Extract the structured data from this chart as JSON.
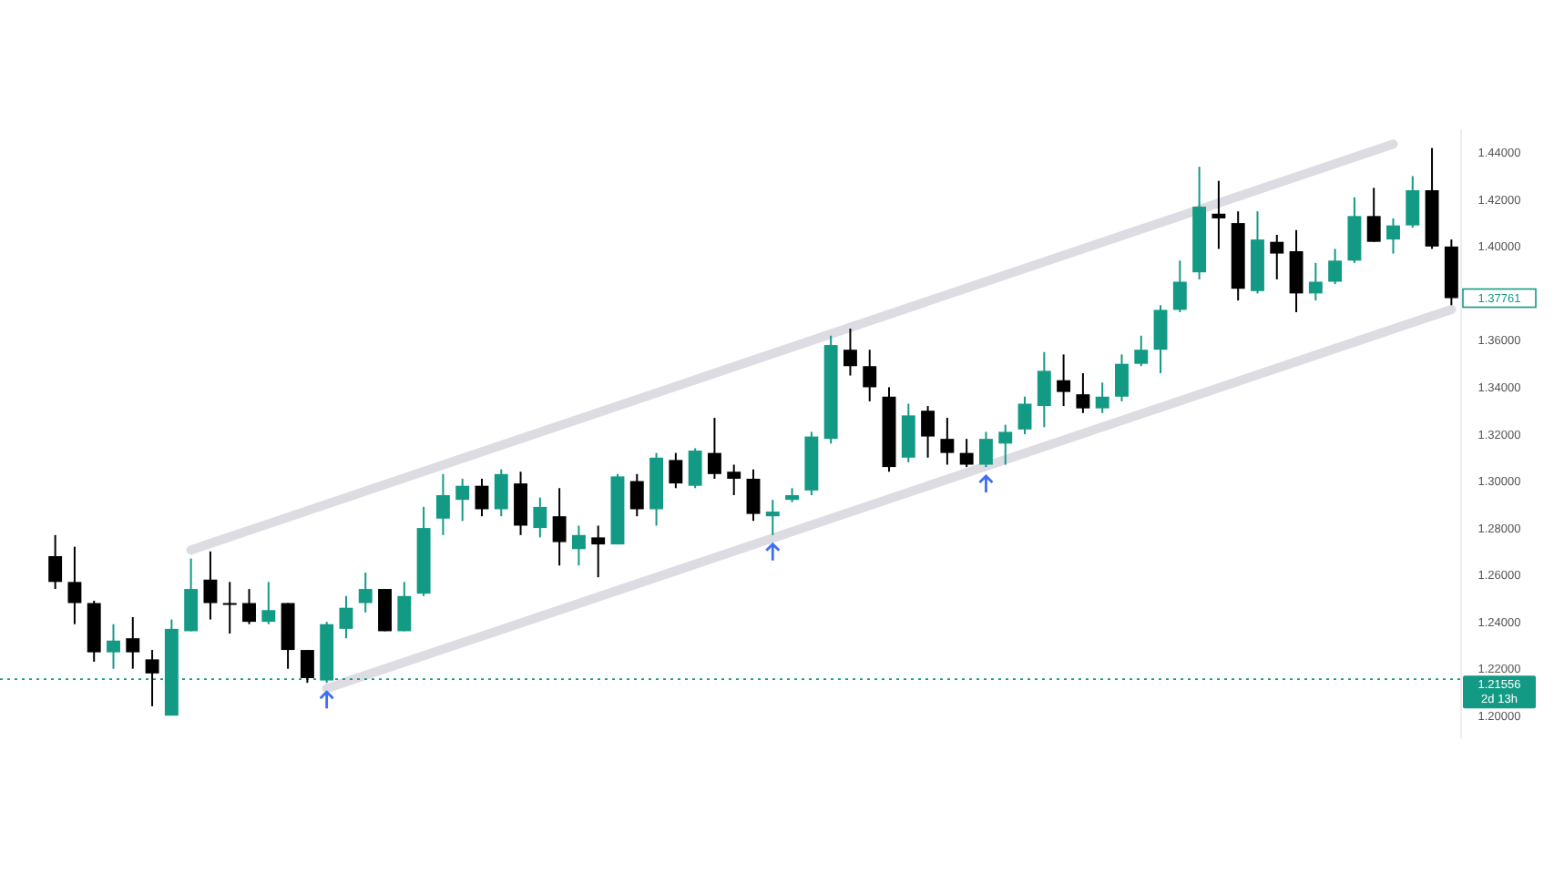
{
  "chart_data": {
    "type": "candlestick",
    "categories": [
      null,
      null,
      null,
      null,
      null,
      null,
      null,
      null,
      null,
      null,
      null,
      null,
      null,
      null,
      null,
      null,
      null,
      null,
      null,
      null,
      null,
      null,
      null,
      null,
      null,
      null,
      null,
      null,
      null,
      null,
      null,
      null,
      null,
      null,
      null,
      null,
      null,
      null,
      null,
      null,
      null,
      null,
      null,
      null,
      null,
      null,
      null,
      null,
      null,
      null,
      null,
      null,
      null,
      null,
      null,
      null,
      null,
      null,
      null,
      null,
      null,
      null,
      null,
      null,
      null,
      null,
      null,
      null,
      null,
      null,
      null,
      null,
      null
    ],
    "ohlc": [
      [
        1.268,
        1.277,
        1.254,
        1.257
      ],
      [
        1.257,
        1.272,
        1.239,
        1.248
      ],
      [
        1.248,
        1.249,
        1.223,
        1.227
      ],
      [
        1.227,
        1.239,
        1.22,
        1.232
      ],
      [
        1.233,
        1.242,
        1.22,
        1.227
      ],
      [
        1.224,
        1.228,
        1.204,
        1.218
      ],
      [
        1.2,
        1.241,
        1.2,
        1.237
      ],
      [
        1.236,
        1.267,
        1.236,
        1.254
      ],
      [
        1.258,
        1.27,
        1.241,
        1.248
      ],
      [
        1.248,
        1.257,
        1.235,
        1.248
      ],
      [
        1.248,
        1.254,
        1.239,
        1.24
      ],
      [
        1.24,
        1.257,
        1.239,
        1.245
      ],
      [
        1.248,
        1.248,
        1.22,
        1.228
      ],
      [
        1.228,
        1.228,
        1.214,
        1.216
      ],
      [
        1.215,
        1.24,
        1.214,
        1.239
      ],
      [
        1.237,
        1.251,
        1.233,
        1.246
      ],
      [
        1.248,
        1.261,
        1.244,
        1.254
      ],
      [
        1.254,
        1.254,
        1.236,
        1.236
      ],
      [
        1.236,
        1.257,
        1.236,
        1.251
      ],
      [
        1.252,
        1.289,
        1.251,
        1.28
      ],
      [
        1.284,
        1.303,
        1.277,
        1.294
      ],
      [
        1.292,
        1.301,
        1.283,
        1.298
      ],
      [
        1.298,
        1.301,
        1.285,
        1.288
      ],
      [
        1.288,
        1.305,
        1.285,
        1.303
      ],
      [
        1.299,
        1.304,
        1.277,
        1.281
      ],
      [
        1.28,
        1.293,
        1.276,
        1.289
      ],
      [
        1.285,
        1.297,
        1.264,
        1.274
      ],
      [
        1.271,
        1.281,
        1.264,
        1.277
      ],
      [
        1.276,
        1.281,
        1.259,
        1.273
      ],
      [
        1.273,
        1.303,
        1.273,
        1.302
      ],
      [
        1.3,
        1.303,
        1.285,
        1.288
      ],
      [
        1.288,
        1.312,
        1.281,
        1.31
      ],
      [
        1.309,
        1.312,
        1.297,
        1.299
      ],
      [
        1.298,
        1.314,
        1.297,
        1.313
      ],
      [
        1.312,
        1.327,
        1.301,
        1.303
      ],
      [
        1.304,
        1.307,
        1.294,
        1.301
      ],
      [
        1.301,
        1.305,
        1.283,
        1.286
      ],
      [
        1.285,
        1.292,
        1.277,
        1.287
      ],
      [
        1.292,
        1.297,
        1.291,
        1.294
      ],
      [
        1.296,
        1.321,
        1.294,
        1.319
      ],
      [
        1.318,
        1.362,
        1.316,
        1.358
      ],
      [
        1.356,
        1.365,
        1.345,
        1.349
      ],
      [
        1.349,
        1.356,
        1.334,
        1.34
      ],
      [
        1.336,
        1.34,
        1.304,
        1.306
      ],
      [
        1.31,
        1.333,
        1.308,
        1.328
      ],
      [
        1.33,
        1.332,
        1.31,
        1.319
      ],
      [
        1.318,
        1.327,
        1.307,
        1.312
      ],
      [
        1.312,
        1.318,
        1.306,
        1.307
      ],
      [
        1.307,
        1.321,
        1.306,
        1.318
      ],
      [
        1.316,
        1.324,
        1.307,
        1.321
      ],
      [
        1.322,
        1.336,
        1.32,
        1.333
      ],
      [
        1.332,
        1.355,
        1.323,
        1.347
      ],
      [
        1.343,
        1.354,
        1.332,
        1.338
      ],
      [
        1.337,
        1.346,
        1.329,
        1.331
      ],
      [
        1.331,
        1.342,
        1.329,
        1.336
      ],
      [
        1.336,
        1.354,
        1.334,
        1.35
      ],
      [
        1.35,
        1.362,
        1.349,
        1.356
      ],
      [
        1.356,
        1.375,
        1.346,
        1.373
      ],
      [
        1.373,
        1.394,
        1.372,
        1.385
      ],
      [
        1.389,
        1.434,
        1.386,
        1.417
      ],
      [
        1.414,
        1.428,
        1.399,
        1.412
      ],
      [
        1.41,
        1.415,
        1.377,
        1.382
      ],
      [
        1.381,
        1.415,
        1.38,
        1.403
      ],
      [
        1.402,
        1.405,
        1.386,
        1.397
      ],
      [
        1.398,
        1.407,
        1.372,
        1.38
      ],
      [
        1.38,
        1.393,
        1.377,
        1.385
      ],
      [
        1.385,
        1.399,
        1.384,
        1.394
      ],
      [
        1.394,
        1.421,
        1.393,
        1.413
      ],
      [
        1.413,
        1.425,
        1.402,
        1.402
      ],
      [
        1.403,
        1.412,
        1.397,
        1.409
      ],
      [
        1.409,
        1.43,
        1.408,
        1.424
      ],
      [
        1.424,
        1.442,
        1.399,
        1.4
      ],
      [
        1.4,
        1.403,
        1.375,
        1.378
      ]
    ],
    "colors": [
      "#000000",
      "#000000",
      "#000000",
      "#139a85",
      "#000000",
      "#000000",
      "#139a85",
      "#139a85",
      "#000000",
      "#000000",
      "#000000",
      "#139a85",
      "#000000",
      "#000000",
      "#139a85",
      "#139a85",
      "#139a85",
      "#000000",
      "#139a85",
      "#139a85",
      "#139a85",
      "#139a85",
      "#000000",
      "#139a85",
      "#000000",
      "#139a85",
      "#000000",
      "#139a85",
      "#000000",
      "#139a85",
      "#000000",
      "#139a85",
      "#000000",
      "#139a85",
      "#000000",
      "#000000",
      "#000000",
      "#139a85",
      "#139a85",
      "#139a85",
      "#139a85",
      "#000000",
      "#000000",
      "#000000",
      "#139a85",
      "#000000",
      "#000000",
      "#000000",
      "#139a85",
      "#139a85",
      "#139a85",
      "#139a85",
      "#000000",
      "#000000",
      "#139a85",
      "#139a85",
      "#139a85",
      "#139a85",
      "#139a85",
      "#139a85",
      "#000000",
      "#000000",
      "#139a85",
      "#000000",
      "#000000",
      "#139a85",
      "#139a85",
      "#139a85",
      "#000000",
      "#139a85",
      "#139a85",
      "#000000",
      "#000000"
    ],
    "series": [
      {
        "type": "line",
        "values": [
          null,
          null,
          null,
          null,
          null,
          null,
          null,
          1.2706,
          null,
          null,
          null,
          null,
          null,
          null,
          null,
          null,
          null,
          null,
          null,
          null,
          null,
          null,
          null,
          null,
          null,
          null,
          null,
          null,
          null,
          null,
          null,
          null,
          null,
          null,
          null,
          null,
          null,
          null,
          null,
          null,
          null,
          null,
          null,
          null,
          null,
          null,
          null,
          null,
          null,
          null,
          null,
          null,
          null,
          null,
          null,
          null,
          null,
          null,
          null,
          null,
          null,
          null,
          null,
          null,
          null,
          null,
          null,
          null,
          null,
          1.4437,
          null,
          null,
          null
        ],
        "color": "#dcdce2"
      },
      {
        "type": "line",
        "values": [
          null,
          null,
          null,
          null,
          null,
          null,
          null,
          null,
          null,
          null,
          null,
          null,
          null,
          null,
          1.2116,
          null,
          null,
          null,
          null,
          null,
          null,
          null,
          null,
          null,
          null,
          null,
          null,
          null,
          null,
          null,
          null,
          null,
          null,
          null,
          null,
          null,
          null,
          null,
          null,
          null,
          null,
          null,
          null,
          null,
          null,
          null,
          null,
          null,
          null,
          null,
          null,
          null,
          null,
          null,
          null,
          null,
          null,
          null,
          null,
          null,
          null,
          null,
          null,
          null,
          null,
          null,
          null,
          null,
          null,
          null,
          null,
          null,
          1.3732
        ],
        "color": "#dcdce2"
      }
    ],
    "ylim": [
      1.19,
      1.45
    ],
    "yticks": [
      {
        "value": 1.2,
        "label": "1.20000"
      },
      {
        "value": 1.22,
        "label": "1.22000"
      },
      {
        "value": 1.24,
        "label": "1.24000"
      },
      {
        "value": 1.26,
        "label": "1.26000"
      },
      {
        "value": 1.28,
        "label": "1.28000"
      },
      {
        "value": 1.3,
        "label": "1.30000"
      },
      {
        "value": 1.32,
        "label": "1.32000"
      },
      {
        "value": 1.34,
        "label": "1.34000"
      },
      {
        "value": 1.36,
        "label": "1.36000"
      },
      {
        "value": 1.4,
        "label": "1.40000"
      },
      {
        "value": 1.42,
        "label": "1.42000"
      },
      {
        "value": 1.44,
        "label": "1.44000"
      }
    ],
    "tick_labels": "y",
    "ref_lines": [
      {
        "axis": "y",
        "value": 1.21556,
        "label": "1.21556",
        "color": "#139a85",
        "line_style": "dotted"
      }
    ],
    "annotations": [
      "2d 13h",
      "1.37761"
    ]
  }
}
